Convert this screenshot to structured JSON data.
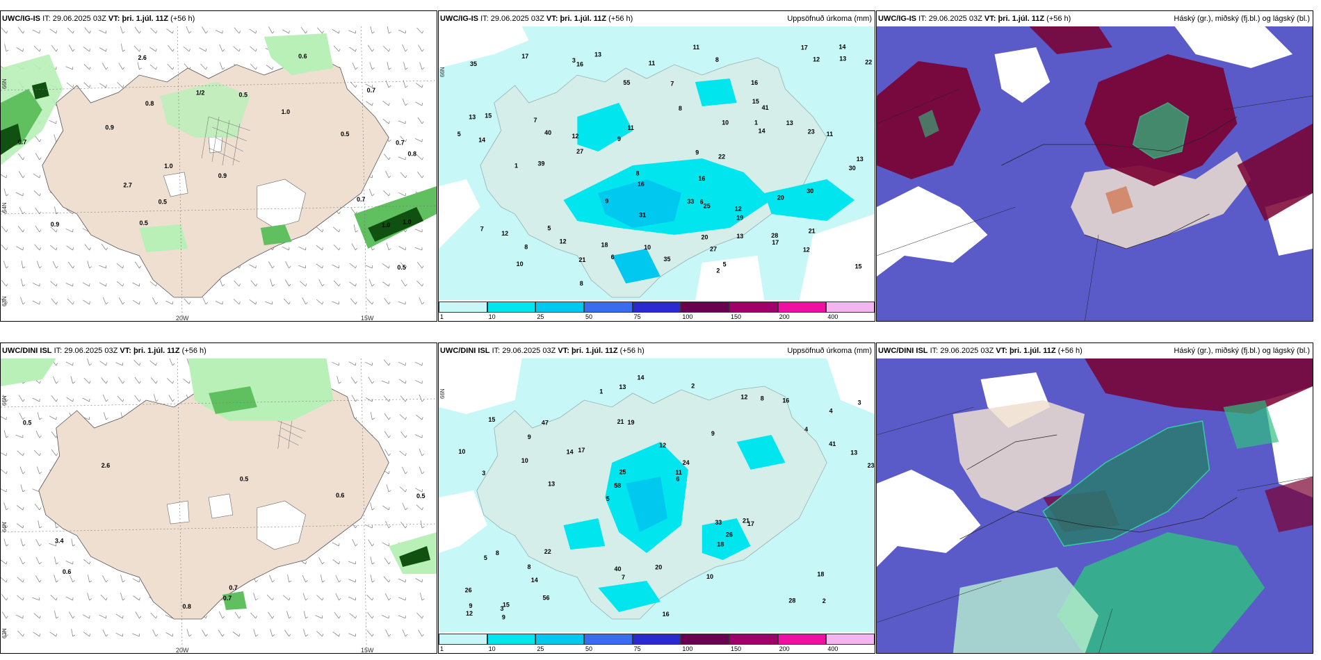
{
  "panels": [
    {
      "id": "tl",
      "model": "UWC/IG-IS",
      "it_label": "IT:",
      "it": "29.06.2025 03Z",
      "vt_label": "VT:",
      "vt": "þri. 1.júl. 11Z",
      "lead": "(+56 h)",
      "right_title": ""
    },
    {
      "id": "tm",
      "model": "UWC/IG-IS",
      "it_label": "IT:",
      "it": "29.06.2025 03Z",
      "vt_label": "VT:",
      "vt": "þri. 1.júl. 11Z",
      "lead": "(+56 h)",
      "right_title": "Uppsöfnuð úrkoma (mm)"
    },
    {
      "id": "tr",
      "model": "UWC/IG-IS",
      "it_label": "IT:",
      "it": "29.06.2025 03Z",
      "vt_label": "VT:",
      "vt": "þri. 1.júl. 11Z",
      "lead": "(+56 h)",
      "right_title": "Háský (gr.), miðský (fj.bl.) og lágský (bl.)"
    },
    {
      "id": "bl",
      "model": "UWC/DINI ISL",
      "it_label": "IT:",
      "it": "29.06.2025 03Z",
      "vt_label": "VT:",
      "vt": "þri. 1.júl. 11Z",
      "lead": "(+56 h)",
      "right_title": ""
    },
    {
      "id": "bm",
      "model": "UWC/DINI ISL",
      "it_label": "IT:",
      "it": "29.06.2025 03Z",
      "vt_label": "VT:",
      "vt": "þri. 1.júl. 11Z",
      "lead": "(+56 h)",
      "right_title": "Uppsöfnuð úrkoma (mm)"
    },
    {
      "id": "br",
      "model": "UWC/DINI ISL",
      "it_label": "IT:",
      "it": "29.06.2025 03Z",
      "vt_label": "VT:",
      "vt": "þri. 1.júl. 11Z",
      "lead": "(+56 h)",
      "right_title": "Háský (gr.), miðský (fj.bl.) og lágský (bl.)"
    }
  ],
  "axes": {
    "lon_20w": "20W",
    "lon_15w": "15W",
    "lat_66n": "66N",
    "lat_64n": "64N",
    "lat_63n": "63N"
  },
  "colorbar": {
    "ticks": [
      "1",
      "10",
      "25",
      "50",
      "75",
      "100",
      "150",
      "200",
      "400"
    ],
    "colors": [
      "#c8f7f7",
      "#00e5ee",
      "#00c8ee",
      "#3a6cf0",
      "#2a2ad0",
      "#6a0050",
      "#a0006a",
      "#ee10a0",
      "#f4b4f0"
    ]
  },
  "colors": {
    "land": "#eedfd0",
    "precip_light": "#b8f0b8",
    "precip_mid": "#60c060",
    "precip_dark": "#105010",
    "cloud_high": "#7a0030",
    "cloud_mid": "#5050c8",
    "cloud_low": "#30c080",
    "acc_bg": "#c8f7f7"
  },
  "wind_panel_values_tl": [
    "0.8",
    "0.7",
    "1.0",
    "0.8",
    "1.0",
    "1.0",
    "0.5",
    "0.6",
    "1.0",
    "0.7",
    "0.9",
    "0.7",
    "0.5",
    "0.5",
    "0.9",
    "0.9",
    "2.7",
    "0.7",
    "2.6",
    "1/2",
    "0.5",
    "0.5"
  ],
  "wind_panel_values_bl": [
    "0.8",
    "0.7",
    "0.5",
    "0.5",
    "0.5",
    "0.6",
    "0.7",
    "3.4",
    "0.6",
    "2.6"
  ],
  "acc_values_tm": [
    "5",
    "16",
    "5",
    "7",
    "13",
    "27",
    "30",
    "27",
    "16",
    "12",
    "12",
    "13",
    "8",
    "6",
    "14",
    "17",
    "14",
    "12",
    "20",
    "23",
    "28",
    "25",
    "21",
    "17",
    "22",
    "41",
    "39",
    "40",
    "35",
    "55",
    "19",
    "14",
    "16",
    "18",
    "13",
    "10",
    "11",
    "15",
    "13",
    "12",
    "11",
    "9",
    "22",
    "21",
    "8",
    "30",
    "33",
    "31",
    "16",
    "13",
    "9",
    "8",
    "12",
    "15",
    "35",
    "15",
    "12",
    "11",
    "8",
    "7",
    "5",
    "2",
    "1",
    "1",
    "3",
    "10",
    "17",
    "20",
    "13",
    "9",
    "11",
    "10",
    "8",
    "7",
    "6"
  ],
  "acc_values_bm": [
    "2",
    "3",
    "4",
    "5",
    "9",
    "15",
    "21",
    "12",
    "8",
    "17",
    "26",
    "14",
    "19",
    "24",
    "17",
    "15",
    "13",
    "23",
    "33",
    "41",
    "58",
    "40",
    "25",
    "47",
    "12",
    "22",
    "28",
    "18",
    "21",
    "16",
    "14",
    "10",
    "18",
    "56",
    "13",
    "11",
    "9",
    "7",
    "6",
    "5",
    "4",
    "3",
    "26",
    "10",
    "8",
    "9",
    "12",
    "20",
    "16",
    "14",
    "13",
    "10",
    "9",
    "8",
    "3",
    "2",
    "1"
  ]
}
